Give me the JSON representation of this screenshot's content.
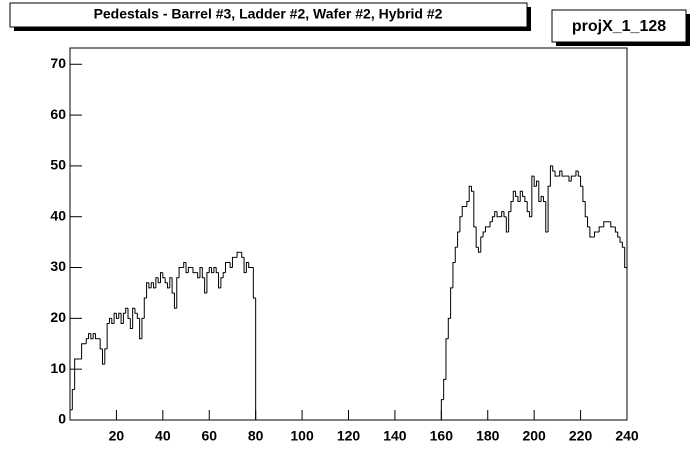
{
  "chart_data": {
    "type": "histogram",
    "title": "Pedestals - Barrel #3, Ladder #2, Wafer #2, Hybrid #2",
    "stats_title": "projX_1_128",
    "color": "#000000",
    "bins": [
      0,
      1,
      2,
      3,
      4,
      5,
      6,
      7,
      8,
      9,
      10,
      11,
      12,
      13,
      14,
      15,
      16,
      17,
      18,
      19,
      20,
      21,
      22,
      23,
      24,
      25,
      26,
      27,
      28,
      29,
      30,
      31,
      32,
      33,
      34,
      35,
      36,
      37,
      38,
      39,
      40,
      41,
      42,
      43,
      44,
      45,
      46,
      47,
      48,
      49,
      50,
      51,
      52,
      53,
      54,
      55,
      56,
      57,
      58,
      59,
      60,
      61,
      62,
      63,
      64,
      65,
      66,
      67,
      68,
      69,
      70,
      71,
      72,
      73,
      74,
      75,
      76,
      77,
      78,
      79,
      80,
      81,
      82,
      83,
      84,
      85,
      86,
      87,
      88,
      89,
      90,
      91,
      92,
      93,
      94,
      95,
      96,
      97,
      98,
      99,
      100,
      101,
      102,
      103,
      104,
      105,
      106,
      107,
      108,
      109,
      110,
      111,
      112,
      113,
      114,
      115,
      116,
      117,
      118,
      119,
      120,
      121,
      122,
      123,
      124,
      125,
      126,
      127,
      128,
      129,
      130,
      131,
      132,
      133,
      134,
      135,
      136,
      137,
      138,
      139,
      140,
      141,
      142,
      143,
      144,
      145,
      146,
      147,
      148,
      149,
      150,
      151,
      152,
      153,
      154,
      155,
      156,
      157,
      158,
      159,
      160,
      161,
      162,
      163,
      164,
      165,
      166,
      167,
      168,
      169,
      170,
      171,
      172,
      173,
      174,
      175,
      176,
      177,
      178,
      179,
      180,
      181,
      182,
      183,
      184,
      185,
      186,
      187,
      188,
      189,
      190,
      191,
      192,
      193,
      194,
      195,
      196,
      197,
      198,
      199,
      200,
      201,
      202,
      203,
      204,
      205,
      206,
      207,
      208,
      209,
      210,
      211,
      212,
      213,
      214,
      215,
      216,
      217,
      218,
      219,
      220,
      221,
      222,
      223,
      224,
      225,
      226,
      227,
      228,
      229,
      230,
      231,
      232,
      233,
      234,
      235,
      236,
      237,
      238,
      239,
      240
    ],
    "values": [
      2,
      6,
      12,
      12,
      12,
      15,
      15,
      16,
      17,
      16,
      17,
      16,
      16,
      14,
      11,
      14,
      19,
      20,
      19,
      21,
      20,
      21,
      19,
      21,
      22,
      20,
      18,
      22,
      21,
      20,
      16,
      20,
      24,
      27,
      26,
      27,
      26,
      28,
      27,
      29,
      28,
      27,
      26,
      28,
      25,
      22,
      28,
      30,
      30,
      31,
      29,
      30,
      30,
      29,
      29,
      28,
      30,
      28,
      25,
      29,
      30,
      29,
      30,
      29,
      26,
      28,
      29,
      31,
      31,
      30,
      32,
      32,
      33,
      33,
      32,
      29,
      31,
      30,
      30,
      24,
      0,
      0,
      0,
      0,
      0,
      0,
      0,
      0,
      0,
      0,
      0,
      0,
      0,
      0,
      0,
      0,
      0,
      0,
      0,
      0,
      0,
      0,
      0,
      0,
      0,
      0,
      0,
      0,
      0,
      0,
      0,
      0,
      0,
      0,
      0,
      0,
      0,
      0,
      0,
      0,
      0,
      0,
      0,
      0,
      0,
      0,
      0,
      0,
      0,
      0,
      0,
      0,
      0,
      0,
      0,
      0,
      0,
      0,
      0,
      0,
      0,
      0,
      0,
      0,
      0,
      0,
      0,
      0,
      0,
      0,
      0,
      0,
      0,
      0,
      0,
      0,
      0,
      0,
      0,
      0,
      4,
      8,
      16,
      20,
      26,
      31,
      34,
      37,
      40,
      42,
      42,
      43,
      46,
      45,
      38,
      34,
      33,
      36,
      37,
      38,
      38,
      39,
      40,
      41,
      40,
      40,
      41,
      40,
      37,
      41,
      43,
      45,
      44,
      43,
      45,
      44,
      43,
      41,
      40,
      48,
      46,
      47,
      43,
      44,
      43,
      37,
      46,
      50,
      49,
      48,
      48,
      49,
      48,
      48,
      48,
      47,
      48,
      48,
      49,
      48,
      46,
      43,
      40,
      38,
      36,
      36,
      37,
      37,
      38,
      38,
      39,
      39,
      39,
      38,
      38,
      37,
      36,
      35,
      34,
      30
    ],
    "xlim": [
      0,
      240
    ],
    "ylim": [
      0,
      73.2
    ],
    "xticks": [
      20,
      40,
      60,
      80,
      100,
      120,
      140,
      160,
      180,
      200,
      220,
      240
    ],
    "yticks": [
      0,
      10,
      20,
      30,
      40,
      50,
      60,
      70
    ]
  }
}
